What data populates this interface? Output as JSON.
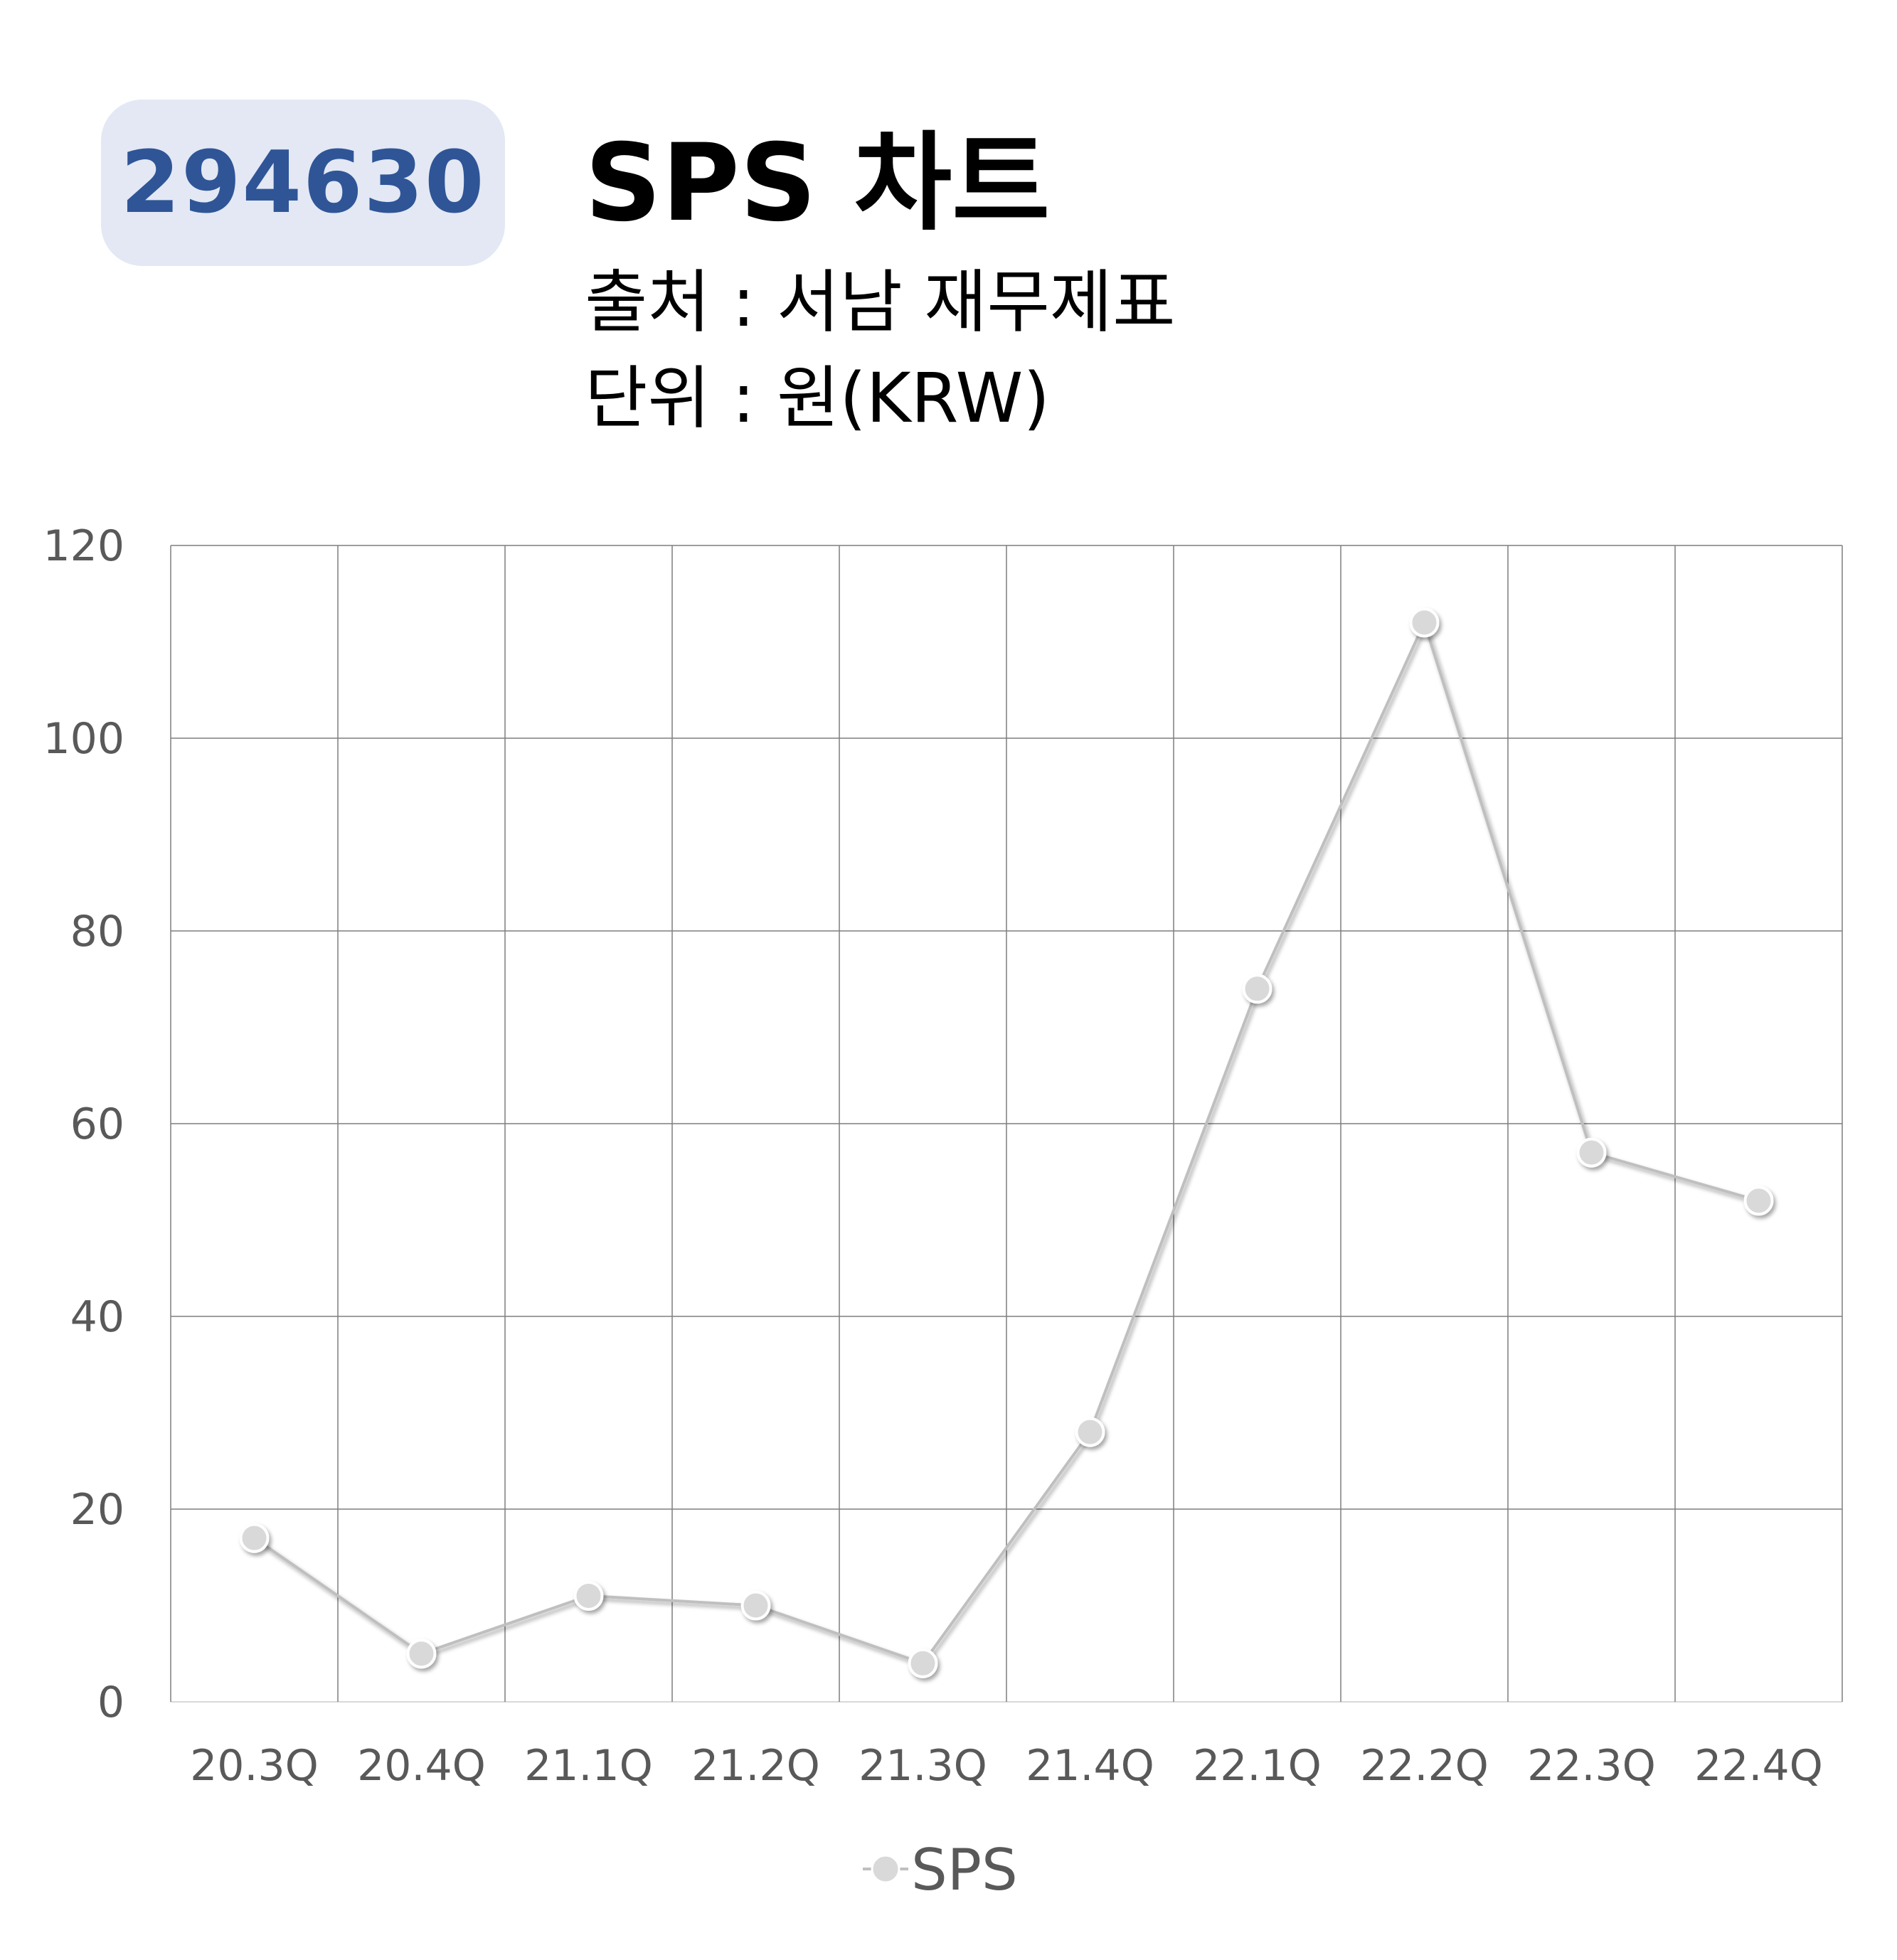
{
  "header": {
    "ticker": "294630",
    "title": "SPS 차트",
    "source": "출처 : 서남 재무제표",
    "unit": "단위 : 원(KRW)"
  },
  "chart_data": {
    "type": "line",
    "title": "SPS 차트",
    "xlabel": "",
    "ylabel": "",
    "categories": [
      "20.3Q",
      "20.4Q",
      "21.1Q",
      "21.2Q",
      "21.3Q",
      "21.4Q",
      "22.1Q",
      "22.2Q",
      "22.3Q",
      "22.4Q"
    ],
    "series": [
      {
        "name": "SPS",
        "values": [
          17,
          5,
          11,
          10,
          4,
          28,
          74,
          112,
          57,
          52
        ],
        "color": "#d9d9d9",
        "line_color": "#bfbfbf"
      }
    ],
    "ylim": [
      0,
      120
    ],
    "yticks": [
      0,
      20,
      40,
      60,
      80,
      100,
      120
    ],
    "grid": true,
    "grid_color": "#7f7f7f",
    "legend": "bottom-center"
  }
}
